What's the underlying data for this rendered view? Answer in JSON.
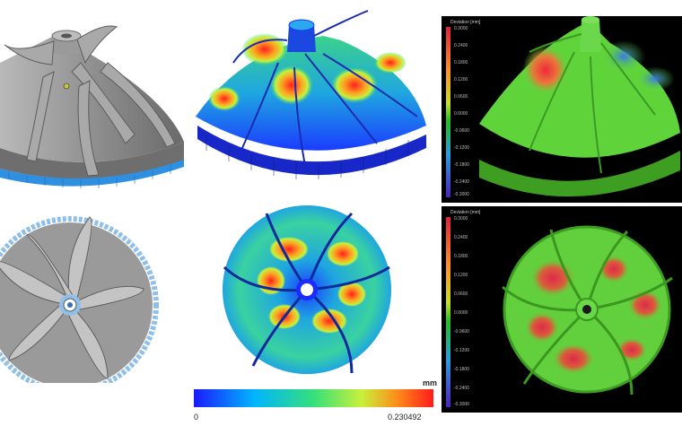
{
  "colorbar": {
    "unit": "mm",
    "min_label": "0",
    "max_label": "0.230492",
    "colors": [
      "#1a1aff",
      "#00b4ff",
      "#35e07a",
      "#c8f03c",
      "#ff8c1a",
      "#ff1a1a"
    ]
  },
  "scan_legend_top": {
    "title": "Deviation [mm]",
    "ticks": [
      "0.3000",
      "0.2400",
      "0.1800",
      "0.1200",
      "0.0600",
      "0.0000",
      "-0.0600",
      "-0.1200",
      "-0.1800",
      "-0.2400",
      "-0.3000"
    ]
  },
  "scan_legend_bottom": {
    "title": "Deviation [mm]",
    "ticks": [
      "0.3000",
      "0.2400",
      "0.1800",
      "0.1200",
      "0.0600",
      "0.0000",
      "-0.0600",
      "-0.1200",
      "-0.1800",
      "-0.2400",
      "-0.3000"
    ]
  },
  "colors": {
    "cad_gray": "#8a8a8a",
    "support_blue": "#2f8fe0",
    "scan_green": "#5fd43a",
    "hot_red": "#e53232"
  }
}
